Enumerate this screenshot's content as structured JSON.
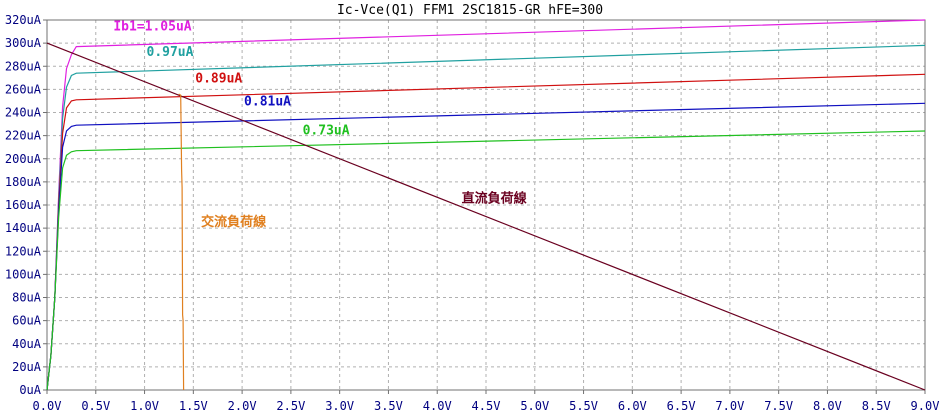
{
  "chart_data": {
    "type": "line",
    "title": "Ic-Vce(Q1) FFM1 2SC1815-GR hFE=300",
    "xlabel": "",
    "ylabel": "",
    "xlim": [
      0,
      9
    ],
    "ylim": [
      0,
      320
    ],
    "x_ticks": [
      "0.0V",
      "0.5V",
      "1.0V",
      "1.5V",
      "2.0V",
      "2.5V",
      "3.0V",
      "3.5V",
      "4.0V",
      "4.5V",
      "5.0V",
      "5.5V",
      "6.0V",
      "6.5V",
      "7.0V",
      "7.5V",
      "8.0V",
      "8.5V",
      "9.0V"
    ],
    "y_ticks": [
      "0uA",
      "20uA",
      "40uA",
      "60uA",
      "80uA",
      "100uA",
      "120uA",
      "140uA",
      "160uA",
      "180uA",
      "200uA",
      "220uA",
      "240uA",
      "260uA",
      "280uA",
      "300uA",
      "320uA"
    ],
    "x_tick_values": [
      0,
      0.5,
      1,
      1.5,
      2,
      2.5,
      3,
      3.5,
      4,
      4.5,
      5,
      5.5,
      6,
      6.5,
      7,
      7.5,
      8,
      8.5,
      9
    ],
    "y_tick_values": [
      0,
      20,
      40,
      60,
      80,
      100,
      120,
      140,
      160,
      180,
      200,
      220,
      240,
      260,
      280,
      300,
      320
    ],
    "grid": true,
    "series": [
      {
        "label": "Ib1=1.05uA",
        "color": "#e020e0",
        "label_x": 0.68,
        "label_y": 311,
        "points": [
          [
            0,
            0
          ],
          [
            0.04,
            30
          ],
          [
            0.08,
            80
          ],
          [
            0.12,
            170
          ],
          [
            0.16,
            245
          ],
          [
            0.2,
            278
          ],
          [
            0.25,
            290
          ],
          [
            0.3,
            297
          ],
          [
            9,
            320
          ]
        ]
      },
      {
        "label": "0.97uA",
        "color": "#20a0a0",
        "label_x": 1.02,
        "label_y": 289,
        "points": [
          [
            0,
            0
          ],
          [
            0.04,
            30
          ],
          [
            0.08,
            80
          ],
          [
            0.12,
            165
          ],
          [
            0.16,
            235
          ],
          [
            0.2,
            262
          ],
          [
            0.25,
            272
          ],
          [
            0.3,
            274
          ],
          [
            9,
            298
          ]
        ]
      },
      {
        "label": "0.89uA",
        "color": "#d01010",
        "label_x": 1.52,
        "label_y": 266,
        "points": [
          [
            0,
            0
          ],
          [
            0.04,
            30
          ],
          [
            0.08,
            80
          ],
          [
            0.12,
            160
          ],
          [
            0.16,
            222
          ],
          [
            0.2,
            244
          ],
          [
            0.25,
            250
          ],
          [
            0.3,
            251
          ],
          [
            9,
            273
          ]
        ]
      },
      {
        "label": "0.81uA",
        "color": "#1010c0",
        "label_x": 2.02,
        "label_y": 246,
        "points": [
          [
            0,
            0
          ],
          [
            0.04,
            30
          ],
          [
            0.08,
            80
          ],
          [
            0.12,
            155
          ],
          [
            0.16,
            210
          ],
          [
            0.2,
            224
          ],
          [
            0.25,
            228
          ],
          [
            0.3,
            229
          ],
          [
            9,
            248
          ]
        ]
      },
      {
        "label": "0.73uA",
        "color": "#20c020",
        "label_x": 2.62,
        "label_y": 221,
        "points": [
          [
            0,
            0
          ],
          [
            0.04,
            30
          ],
          [
            0.08,
            80
          ],
          [
            0.12,
            150
          ],
          [
            0.16,
            192
          ],
          [
            0.2,
            203
          ],
          [
            0.25,
            206
          ],
          [
            0.3,
            207
          ],
          [
            9,
            224
          ]
        ]
      },
      {
        "label": "直流負荷線",
        "color": "#6a0020",
        "label_x": 4.25,
        "label_y": 162,
        "points": [
          [
            0,
            300
          ],
          [
            9,
            0
          ]
        ]
      },
      {
        "label": "交流負荷線",
        "color": "#e08020",
        "label_x": 1.58,
        "label_y": 142,
        "points": [
          [
            1.35,
            256
          ],
          [
            1.37,
            255
          ],
          [
            1.38,
            190
          ],
          [
            1.385,
            175
          ],
          [
            1.39,
            65
          ],
          [
            1.395,
            60
          ],
          [
            1.4,
            0
          ]
        ]
      }
    ]
  }
}
